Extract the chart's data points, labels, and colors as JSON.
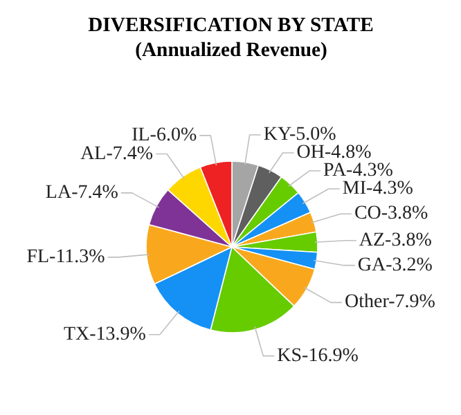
{
  "chart_data": {
    "type": "pie",
    "title": "DIVERSIFICATION BY STATE",
    "subtitle": "(Annualized Revenue)",
    "categories": [
      "KY",
      "OH",
      "PA",
      "MI",
      "CO",
      "AZ",
      "GA",
      "Other",
      "KS",
      "TX",
      "FL",
      "LA",
      "AL",
      "IL"
    ],
    "values": [
      5.0,
      4.8,
      4.3,
      4.3,
      3.8,
      3.8,
      3.2,
      7.9,
      16.9,
      13.9,
      11.3,
      7.4,
      7.4,
      6.0
    ],
    "colors": [
      "#a5a5a5",
      "#5f5f5f",
      "#66cc00",
      "#1591f5",
      "#f9a81e",
      "#66cc00",
      "#1591f5",
      "#f9a81e",
      "#66cc00",
      "#1591f5",
      "#f9a81e",
      "#7f3396",
      "#ffd700",
      "#ee2222"
    ],
    "value_labels": [
      "5.0%",
      "4.8%",
      "4.3%",
      "4.3%",
      "3.8%",
      "3.8%",
      "3.2%",
      "7.9%",
      "16.9%",
      "13.9%",
      "11.3%",
      "7.4%",
      "7.4%",
      "6.0%"
    ]
  }
}
